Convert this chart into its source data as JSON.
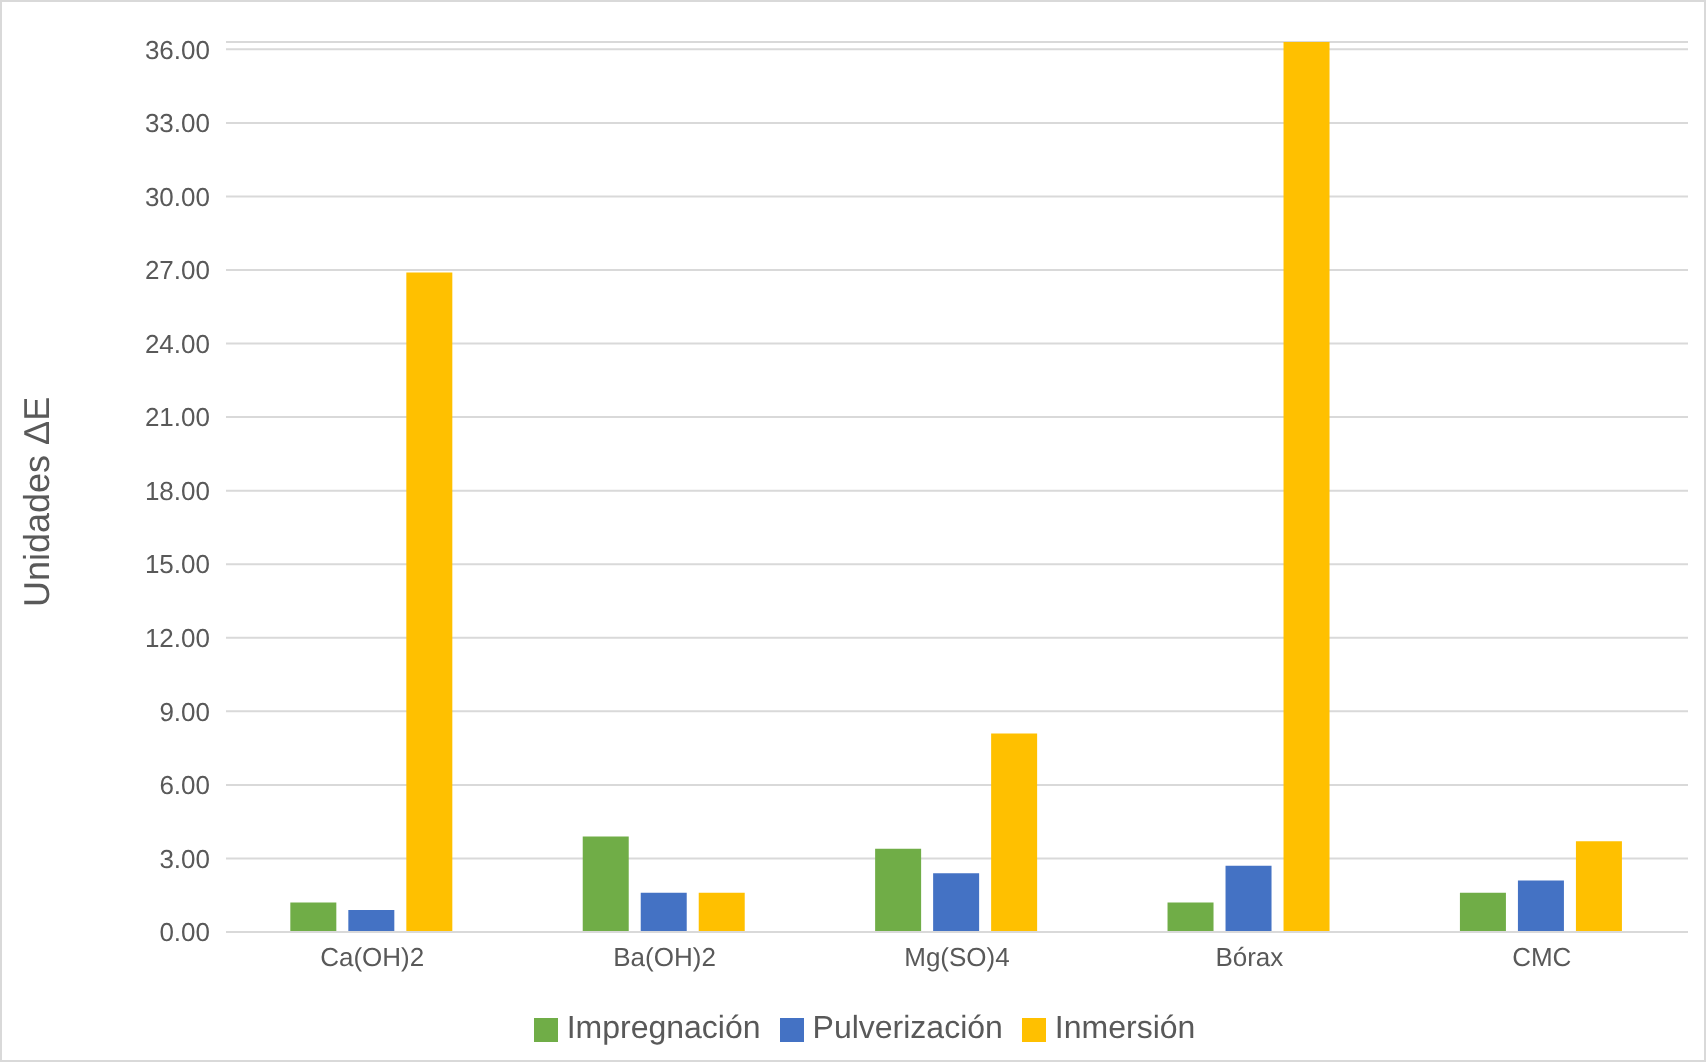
{
  "chart_data": {
    "type": "bar",
    "ylabel": "Unidades ΔE",
    "categories": [
      "Ca(OH)2",
      "Ba(OH)2",
      "Mg(SO)4",
      "Bórax",
      "CMC"
    ],
    "series": [
      {
        "name": "Impregnación",
        "color": "#70ad47",
        "values": [
          1.2,
          3.9,
          3.4,
          1.2,
          1.6
        ]
      },
      {
        "name": "Pulverización",
        "color": "#4472c4",
        "values": [
          0.9,
          1.6,
          2.4,
          2.7,
          2.1
        ]
      },
      {
        "name": "Inmersión",
        "color": "#ffc000",
        "values": [
          26.9,
          1.6,
          8.1,
          36.3,
          3.7
        ]
      }
    ],
    "ylim": [
      0,
      36.3
    ],
    "yticks": [
      {
        "value": 0,
        "label": "0.00"
      },
      {
        "value": 3,
        "label": "3.00"
      },
      {
        "value": 6,
        "label": "6.00"
      },
      {
        "value": 9,
        "label": "9.00"
      },
      {
        "value": 12,
        "label": "12.00"
      },
      {
        "value": 15,
        "label": "15.00"
      },
      {
        "value": 18,
        "label": "18.00"
      },
      {
        "value": 21,
        "label": "21.00"
      },
      {
        "value": 24,
        "label": "24.00"
      },
      {
        "value": 27,
        "label": "27.00"
      },
      {
        "value": 30,
        "label": "30.00"
      },
      {
        "value": 33,
        "label": "33.00"
      },
      {
        "value": 36,
        "label": "36.00"
      }
    ],
    "grid": "y",
    "legend": "bottom"
  }
}
